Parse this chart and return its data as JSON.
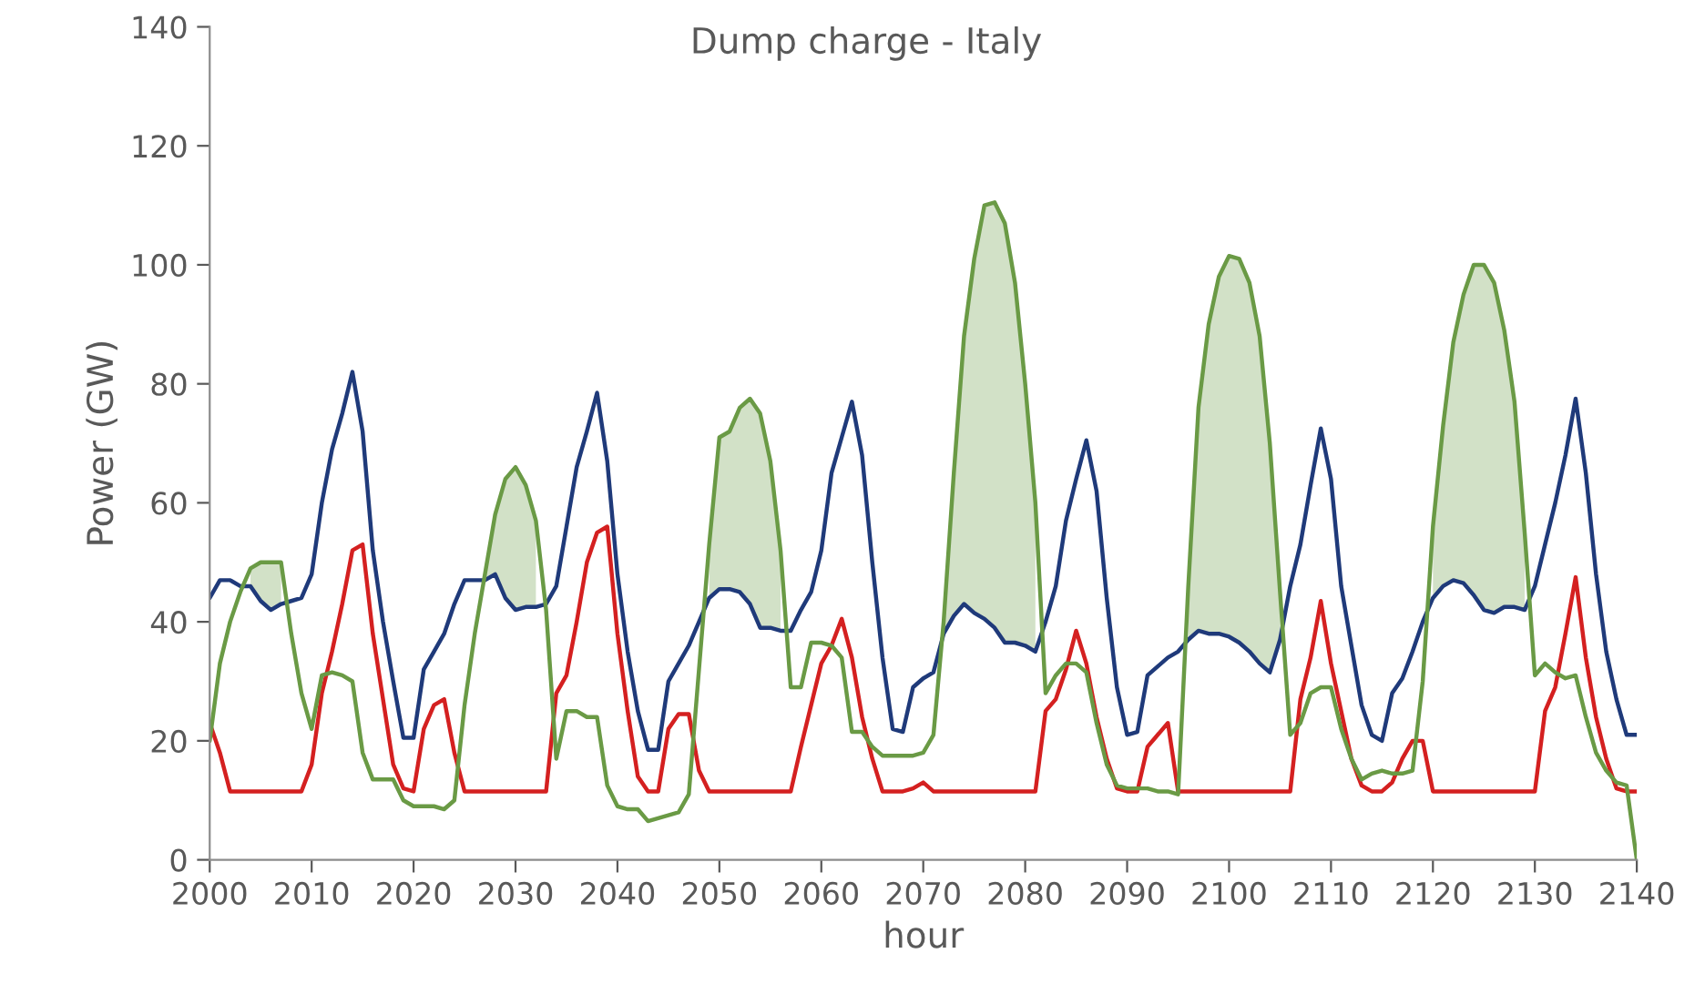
{
  "chart_data": {
    "type": "line",
    "title": "Dump charge - Italy",
    "xlabel": "hour",
    "ylabel": "Power (GW)",
    "x": [
      2000,
      2001,
      2002,
      2003,
      2004,
      2005,
      2006,
      2007,
      2008,
      2009,
      2010,
      2011,
      2012,
      2013,
      2014,
      2015,
      2016,
      2017,
      2018,
      2019,
      2020,
      2021,
      2022,
      2023,
      2024,
      2025,
      2026,
      2027,
      2028,
      2029,
      2030,
      2031,
      2032,
      2033,
      2034,
      2035,
      2036,
      2037,
      2038,
      2039,
      2040,
      2041,
      2042,
      2043,
      2044,
      2045,
      2046,
      2047,
      2048,
      2049,
      2050,
      2051,
      2052,
      2053,
      2054,
      2055,
      2056,
      2057,
      2058,
      2059,
      2060,
      2061,
      2062,
      2063,
      2064,
      2065,
      2066,
      2067,
      2068,
      2069,
      2070,
      2071,
      2072,
      2073,
      2074,
      2075,
      2076,
      2077,
      2078,
      2079,
      2080,
      2081,
      2082,
      2083,
      2084,
      2085,
      2086,
      2087,
      2088,
      2089,
      2090,
      2091,
      2092,
      2093,
      2094,
      2095,
      2096,
      2097,
      2098,
      2099,
      2100,
      2101,
      2102,
      2103,
      2104,
      2105,
      2106,
      2107,
      2108,
      2109,
      2110,
      2111,
      2112,
      2113,
      2114,
      2115,
      2116,
      2117,
      2118,
      2119,
      2120,
      2121,
      2122,
      2123,
      2124,
      2125,
      2126,
      2127,
      2128,
      2129,
      2130,
      2131,
      2132,
      2133,
      2134,
      2135,
      2136,
      2137,
      2138,
      2139,
      2140
    ],
    "series": [
      {
        "color": "#1f3a7a",
        "values": [
          44,
          47,
          47,
          46,
          46,
          43.5,
          42,
          43,
          43.5,
          44,
          48,
          60,
          69,
          75,
          82,
          72,
          52,
          40,
          30,
          20.5,
          20.5,
          32,
          35,
          38,
          43,
          47,
          47,
          47,
          48,
          44,
          42,
          42.5,
          42.5,
          43,
          46,
          56,
          66,
          72,
          78.5,
          67,
          48,
          35,
          25,
          18.5,
          18.5,
          30,
          33,
          36,
          40,
          44,
          45.5,
          45.5,
          45,
          43,
          39,
          39,
          38.5,
          38.5,
          42,
          45,
          52,
          65,
          71,
          77,
          68,
          50,
          34,
          22,
          21.5,
          29,
          30.5,
          31.5,
          38,
          41,
          43,
          41.5,
          40.5,
          39,
          36.5,
          36.5,
          36,
          35,
          40,
          46,
          57,
          64,
          70.5,
          62,
          44,
          29,
          21,
          21.5,
          31,
          32.5,
          34,
          35,
          37,
          38.5,
          38,
          38,
          37.5,
          36.5,
          35,
          33,
          31.5,
          37,
          46,
          53,
          63,
          72.5,
          64,
          46,
          36,
          26,
          21,
          20,
          28,
          30.5,
          35,
          40,
          44,
          46,
          47,
          46.5,
          44.5,
          42,
          41.5,
          42.5,
          42.5,
          42,
          46,
          53,
          60,
          68,
          77.5,
          65,
          48,
          35,
          27,
          21,
          21
        ]
      },
      {
        "color": "#d42020",
        "values": [
          23,
          18,
          11.5,
          11.5,
          11.5,
          11.5,
          11.5,
          11.5,
          11.5,
          11.5,
          16,
          28,
          35,
          43,
          52,
          53,
          38,
          27,
          16,
          12,
          11.5,
          22,
          26,
          27,
          18,
          11.5,
          11.5,
          11.5,
          11.5,
          11.5,
          11.5,
          11.5,
          11.5,
          11.5,
          28,
          31,
          40,
          50,
          55,
          56,
          38,
          25,
          14,
          11.5,
          11.5,
          22,
          24.5,
          24.5,
          15,
          11.5,
          11.5,
          11.5,
          11.5,
          11.5,
          11.5,
          11.5,
          11.5,
          11.5,
          19,
          26,
          33,
          36,
          40.5,
          34,
          24,
          17,
          11.5,
          11.5,
          11.5,
          12,
          13,
          11.5,
          11.5,
          11.5,
          11.5,
          11.5,
          11.5,
          11.5,
          11.5,
          11.5,
          11.5,
          11.5,
          25,
          27,
          32,
          38.5,
          33,
          24,
          17,
          12,
          11.5,
          11.5,
          19,
          21,
          23,
          11.5,
          11.5,
          11.5,
          11.5,
          11.5,
          11.5,
          11.5,
          11.5,
          11.5,
          11.5,
          11.5,
          11.5,
          27,
          34,
          43.5,
          33,
          25,
          17,
          12.5,
          11.5,
          11.5,
          13,
          17,
          20,
          20,
          11.5,
          11.5,
          11.5,
          11.5,
          11.5,
          11.5,
          11.5,
          11.5,
          11.5,
          11.5,
          11.5,
          25,
          29,
          38,
          47.5,
          34,
          24,
          17,
          12,
          11.5,
          11.5
        ]
      },
      {
        "color": "#6a9a45",
        "values": [
          20,
          33,
          40,
          45,
          49,
          50,
          50,
          50,
          38,
          28,
          22,
          31,
          31.5,
          31,
          30,
          18,
          13.5,
          13.5,
          13.5,
          10,
          9,
          9,
          9,
          8.5,
          10,
          26,
          38,
          48,
          58,
          64,
          66,
          63,
          57,
          42,
          17,
          25,
          25,
          24,
          24,
          12.5,
          9,
          8.5,
          8.5,
          6.5,
          7,
          7.5,
          8,
          11,
          32,
          53,
          71,
          72,
          76,
          77.5,
          75,
          67,
          52,
          29,
          29,
          36.5,
          36.5,
          36,
          34,
          21.5,
          21.5,
          19,
          17.5,
          17.5,
          17.5,
          17.5,
          18,
          21,
          40,
          65,
          88,
          101,
          110,
          110.5,
          107,
          97,
          80,
          60,
          28,
          31,
          33,
          33,
          31.5,
          23,
          16,
          12.5,
          12,
          12,
          12,
          11.5,
          11.5,
          11,
          46,
          76,
          90,
          98,
          101.5,
          101,
          97,
          88,
          70,
          45,
          21,
          23,
          28,
          29,
          29,
          22,
          17,
          13.5,
          14.5,
          15,
          14.5,
          14.5,
          15,
          30,
          56,
          73,
          87,
          95,
          100,
          100,
          97,
          89,
          77,
          55,
          31,
          33,
          31.5,
          30.5,
          31,
          24,
          18,
          15,
          13,
          12.5,
          0
        ],
        "lower": [
          null,
          null,
          null,
          null,
          46,
          43.5,
          42,
          43,
          null,
          null,
          null,
          null,
          null,
          null,
          null,
          null,
          null,
          null,
          null,
          null,
          null,
          null,
          null,
          null,
          null,
          null,
          null,
          47,
          48,
          44,
          42,
          42.5,
          42.5,
          null,
          null,
          null,
          null,
          null,
          null,
          null,
          null,
          null,
          null,
          null,
          null,
          null,
          null,
          null,
          null,
          44,
          45.5,
          45.5,
          45,
          43,
          39,
          39,
          38.5,
          null,
          null,
          null,
          null,
          null,
          null,
          null,
          null,
          null,
          null,
          null,
          null,
          null,
          null,
          null,
          38,
          41,
          43,
          41.5,
          40.5,
          39,
          36.5,
          36.5,
          36,
          35,
          null,
          null,
          null,
          null,
          null,
          null,
          null,
          null,
          null,
          null,
          null,
          null,
          null,
          null,
          37,
          38.5,
          38,
          38,
          37.5,
          36.5,
          35,
          33,
          31.5,
          37,
          null,
          null,
          null,
          null,
          null,
          null,
          null,
          null,
          null,
          null,
          null,
          null,
          null,
          null,
          44,
          46,
          47,
          46.5,
          44.5,
          42,
          41.5,
          42.5,
          42.5,
          42,
          null,
          null,
          null,
          null,
          null,
          null,
          null,
          null,
          null,
          null,
          null
        ],
        "upper": [
          null,
          null,
          null,
          null,
          49,
          50,
          50,
          50,
          null,
          null,
          null,
          null,
          null,
          null,
          null,
          null,
          null,
          null,
          null,
          null,
          null,
          null,
          null,
          null,
          null,
          null,
          null,
          48,
          58,
          64,
          66,
          63,
          57,
          null,
          null,
          null,
          null,
          null,
          null,
          null,
          null,
          null,
          null,
          null,
          null,
          null,
          null,
          null,
          null,
          53,
          71,
          72,
          76,
          77.5,
          75,
          67,
          52,
          null,
          null,
          null,
          null,
          null,
          null,
          null,
          null,
          null,
          null,
          null,
          null,
          null,
          null,
          null,
          40,
          65,
          88,
          101,
          110,
          110.5,
          107,
          97,
          80,
          60,
          null,
          null,
          null,
          null,
          null,
          null,
          null,
          null,
          null,
          null,
          null,
          null,
          null,
          null,
          46,
          76,
          90,
          98,
          101.5,
          101,
          97,
          88,
          70,
          45,
          null,
          null,
          null,
          null,
          null,
          null,
          null,
          null,
          null,
          null,
          null,
          null,
          null,
          null,
          56,
          73,
          87,
          95,
          100,
          100,
          97,
          89,
          77,
          55,
          null,
          null,
          null,
          null,
          null,
          null,
          null,
          null,
          null,
          null,
          null
        ]
      }
    ],
    "xlim": [
      2000,
      2140
    ],
    "xticks": [
      2000,
      2010,
      2020,
      2030,
      2040,
      2050,
      2060,
      2070,
      2080,
      2090,
      2100,
      2110,
      2120,
      2130,
      2140
    ],
    "ylim": [
      0,
      140
    ],
    "yticks": [
      0,
      20,
      40,
      60,
      80,
      100,
      120,
      140
    ],
    "grid": false,
    "marker": "none",
    "line_style": "solid"
  }
}
